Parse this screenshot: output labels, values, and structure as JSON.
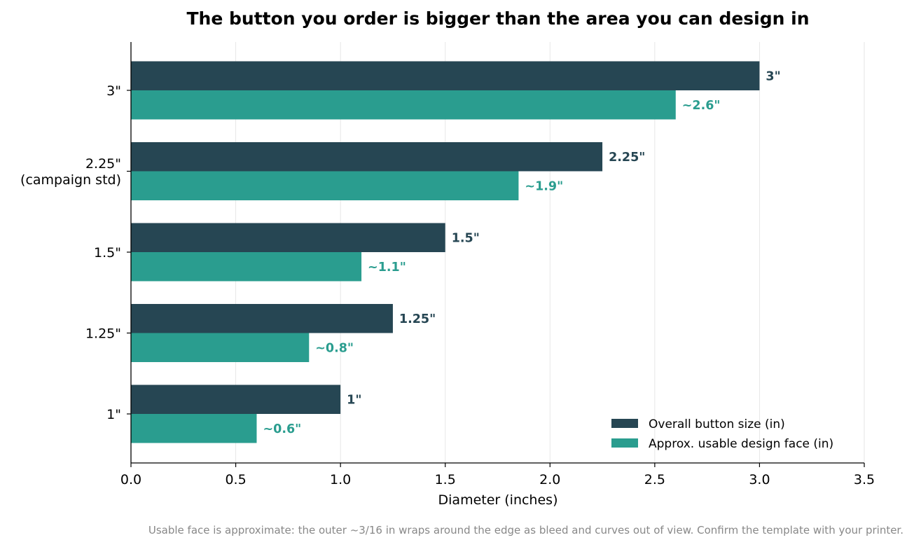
{
  "chart_data": {
    "type": "bar",
    "orientation": "horizontal",
    "title": "The button you order is bigger than the area you can design in",
    "xlabel": "Diameter (inches)",
    "ylabel": "",
    "xlim": [
      0,
      3.5
    ],
    "xticks": [
      "0.0",
      "0.5",
      "1.0",
      "1.5",
      "2.0",
      "2.5",
      "3.0",
      "3.5"
    ],
    "xtick_values": [
      0,
      0.5,
      1.0,
      1.5,
      2.0,
      2.5,
      3.0,
      3.5
    ],
    "grid": "vertical",
    "legend_position": "bottom-right",
    "categories": [
      [
        "1\""
      ],
      [
        "1.25\""
      ],
      [
        "1.5\""
      ],
      [
        "2.25\"",
        "(campaign std)"
      ],
      [
        "3\""
      ]
    ],
    "series": [
      {
        "name": "Overall button size (in)",
        "color": "#264653",
        "values": [
          1.0,
          1.25,
          1.5,
          2.25,
          3.0
        ],
        "labels": [
          "1\"",
          "1.25\"",
          "1.5\"",
          "2.25\"",
          "3\""
        ]
      },
      {
        "name": "Approx. usable design face (in)",
        "color": "#2a9d8f",
        "values": [
          0.6,
          0.85,
          1.1,
          1.85,
          2.6
        ],
        "labels": [
          "~0.6\"",
          "~0.8\"",
          "~1.1\"",
          "~1.9\"",
          "~2.6\""
        ]
      }
    ],
    "footnote": "Usable face is approximate: the outer ~3/16 in wraps around the edge as bleed and curves out of view. Confirm the template with your printer."
  }
}
